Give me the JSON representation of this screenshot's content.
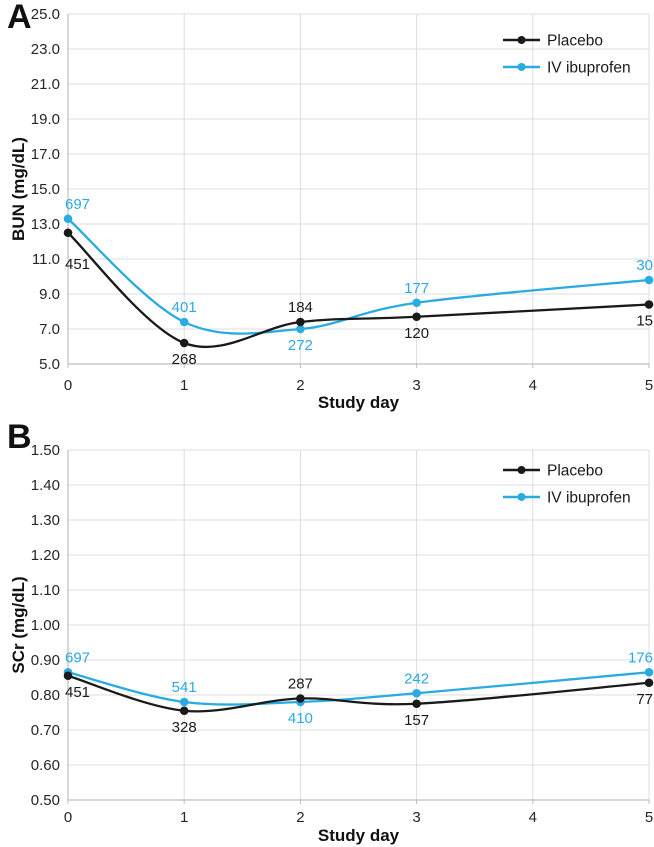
{
  "colors": {
    "placebo": "#1a1a1a",
    "iv_ibuprofen": "#29abe2",
    "grid": "#dcdcdc",
    "axis": "#bdbdbd",
    "text": "#262626"
  },
  "chart_data": [
    {
      "type": "line",
      "panel_label": "A",
      "title": "",
      "xlabel": "Study day",
      "ylabel": "BUN (mg/dL)",
      "xlim": [
        0,
        5
      ],
      "ylim": [
        5.0,
        25.0
      ],
      "x_ticks": [
        "0",
        "1",
        "2",
        "3",
        "4",
        "5"
      ],
      "y_ticks": [
        "25.0",
        "23.0",
        "21.0",
        "19.0",
        "17.0",
        "15.0",
        "13.0",
        "11.0",
        "9.0",
        "7.0",
        "5.0"
      ],
      "grid": true,
      "legend_position": "top-right",
      "x": [
        0,
        1,
        2,
        3,
        5
      ],
      "series": [
        {
          "name": "Placebo",
          "color": "#1a1a1a",
          "values": [
            12.5,
            6.2,
            7.4,
            7.7,
            8.4
          ],
          "point_labels": [
            "451",
            "268",
            "184",
            "120",
            "15"
          ],
          "label_pos": [
            "below-far",
            "below",
            "above",
            "below",
            "below"
          ]
        },
        {
          "name": "IV ibuprofen",
          "color": "#29abe2",
          "values": [
            13.3,
            7.4,
            7.0,
            8.5,
            9.8
          ],
          "point_labels": [
            "697",
            "401",
            "272",
            "177",
            "30"
          ],
          "label_pos": [
            "above",
            "above",
            "below",
            "above",
            "above"
          ]
        }
      ]
    },
    {
      "type": "line",
      "panel_label": "B",
      "title": "",
      "xlabel": "Study day",
      "ylabel": "SCr (mg/dL)",
      "xlim": [
        0,
        5
      ],
      "ylim": [
        0.5,
        1.5
      ],
      "x_ticks": [
        "0",
        "1",
        "2",
        "3",
        "4",
        "5"
      ],
      "y_ticks": [
        "1.50",
        "1.40",
        "1.30",
        "1.20",
        "1.10",
        "1.00",
        "0.90",
        "0.80",
        "0.70",
        "0.60",
        "0.50"
      ],
      "grid": true,
      "legend_position": "top-right",
      "x": [
        0,
        1,
        2,
        3,
        5
      ],
      "series": [
        {
          "name": "Placebo",
          "color": "#1a1a1a",
          "values": [
            0.855,
            0.755,
            0.79,
            0.775,
            0.835
          ],
          "point_labels": [
            "451",
            "328",
            "287",
            "157",
            "77"
          ],
          "label_pos": [
            "below",
            "below",
            "above",
            "below",
            "below"
          ]
        },
        {
          "name": "IV ibuprofen",
          "color": "#29abe2",
          "values": [
            0.865,
            0.78,
            0.78,
            0.805,
            0.865
          ],
          "point_labels": [
            "697",
            "541",
            "410",
            "242",
            "176"
          ],
          "label_pos": [
            "above",
            "above",
            "below",
            "above",
            "above"
          ]
        }
      ]
    }
  ]
}
